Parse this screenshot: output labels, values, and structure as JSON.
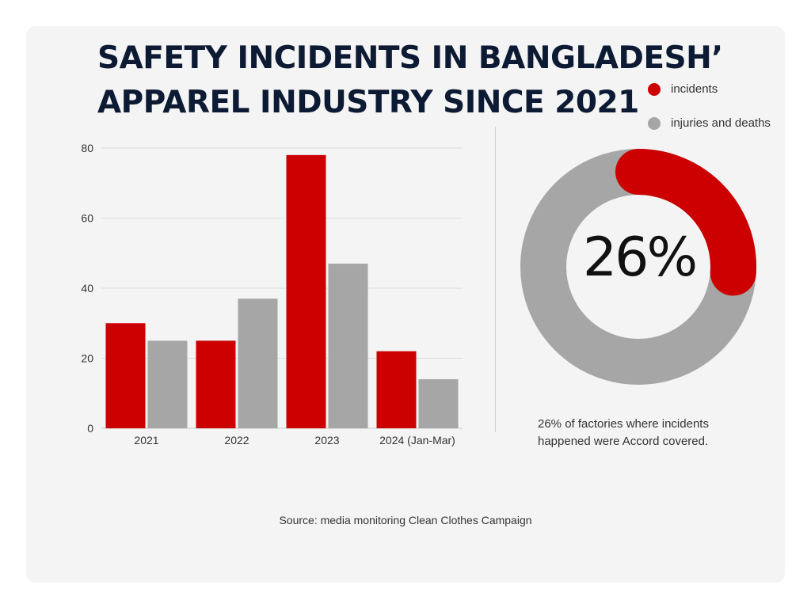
{
  "title_lines": [
    "Safety incidents in Bangladesh’",
    "apparel industry since 2021"
  ],
  "legend": [
    {
      "label": "incidents",
      "color": "#cc0000"
    },
    {
      "label": "injuries and deaths",
      "color": "#a6a6a6"
    }
  ],
  "chart_data": [
    {
      "type": "bar",
      "categories": [
        "2021",
        "2022",
        "2023",
        "2024 (Jan-Mar)"
      ],
      "series": [
        {
          "name": "incidents",
          "color": "#cc0000",
          "values": [
            30,
            25,
            78,
            22
          ]
        },
        {
          "name": "injuries and deaths",
          "color": "#a6a6a6",
          "values": [
            25,
            37,
            47,
            14
          ]
        }
      ],
      "ylim": [
        0,
        80
      ],
      "yticks": [
        0,
        20,
        40,
        60,
        80
      ],
      "grid": true
    },
    {
      "type": "pie",
      "donut": true,
      "values": [
        26,
        74
      ],
      "colors": [
        "#cc0000",
        "#a6a6a6"
      ],
      "center_label": "26%"
    }
  ],
  "caption": "26% of factories where incidents happened were Accord covered.",
  "source": "Source: media monitoring Clean Clothes Campaign"
}
